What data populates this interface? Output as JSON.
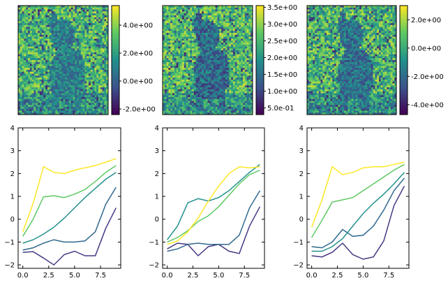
{
  "colormap": {
    "name": "viridis",
    "stops": [
      "#440154",
      "#3b528b",
      "#21918c",
      "#5ec962",
      "#fde725"
    ]
  },
  "chart_data": [
    {
      "type": "heatmap",
      "note": "noisy image of a dog",
      "vmin": -2.4,
      "vmax": 5.4,
      "colorbar_ticks": [
        {
          "value": 4.0,
          "label": "4.0e+00"
        },
        {
          "value": 2.0,
          "label": "2.0e+00"
        },
        {
          "value": 0.0,
          "label": "0.0e+00"
        },
        {
          "value": -2.0,
          "label": "-2.0e+00"
        }
      ]
    },
    {
      "type": "heatmap",
      "note": "noisy image of a dog",
      "vmin": 0.3,
      "vmax": 3.55,
      "colorbar_ticks": [
        {
          "value": 3.5,
          "label": "3.5e+00"
        },
        {
          "value": 3.0,
          "label": "3.0e+00"
        },
        {
          "value": 2.5,
          "label": "2.5e+00"
        },
        {
          "value": 2.0,
          "label": "2.0e+00"
        },
        {
          "value": 1.5,
          "label": "1.5e+00"
        },
        {
          "value": 1.0,
          "label": "1.0e+00"
        },
        {
          "value": 0.5,
          "label": "5.0e-01"
        }
      ]
    },
    {
      "type": "heatmap",
      "note": "noisy image of a dog",
      "vmin": -4.7,
      "vmax": 3.0,
      "colorbar_ticks": [
        {
          "value": 2.0,
          "label": "2.0e+00"
        },
        {
          "value": 0.0,
          "label": "0.0e+00"
        },
        {
          "value": -2.0,
          "label": "-2.0e+00"
        },
        {
          "value": -4.0,
          "label": "-4.0e+00"
        }
      ]
    },
    {
      "type": "line",
      "x": [
        0,
        1,
        2,
        3,
        4,
        5,
        6,
        7,
        8,
        9
      ],
      "xlim": [
        -0.45,
        9.45
      ],
      "ylim": [
        -2.15,
        4.0
      ],
      "xticks": [
        {
          "value": 0,
          "label": "0.0"
        },
        {
          "value": 2.5,
          "label": "2.5"
        },
        {
          "value": 5,
          "label": "5.0"
        },
        {
          "value": 7.5,
          "label": "7.5"
        }
      ],
      "yticks": [
        {
          "value": -2,
          "label": "−2"
        },
        {
          "value": -1,
          "label": "−1"
        },
        {
          "value": 0,
          "label": "0"
        },
        {
          "value": 1,
          "label": "1"
        },
        {
          "value": 2,
          "label": "2"
        },
        {
          "value": 3,
          "label": "3"
        },
        {
          "value": 4,
          "label": "4"
        }
      ],
      "series": [
        {
          "color": "#443983",
          "values": [
            -1.45,
            -1.42,
            -1.7,
            -2.0,
            -1.55,
            -1.4,
            -1.6,
            -1.6,
            -0.4,
            0.5
          ]
        },
        {
          "color": "#31688e",
          "values": [
            -1.35,
            -1.25,
            -1.05,
            -0.9,
            -1.0,
            -1.0,
            -0.95,
            -0.55,
            0.65,
            1.4
          ]
        },
        {
          "color": "#21918c",
          "values": [
            -1.05,
            -0.9,
            -0.65,
            -0.35,
            0.05,
            0.5,
            0.95,
            1.35,
            1.75,
            2.05
          ]
        },
        {
          "color": "#5ec962",
          "values": [
            -0.75,
            0.0,
            0.98,
            1.03,
            0.95,
            1.1,
            1.3,
            1.65,
            2.05,
            2.35
          ]
        },
        {
          "color": "#fde725",
          "values": [
            -0.55,
            0.7,
            2.3,
            2.05,
            2.0,
            2.15,
            2.25,
            2.35,
            2.5,
            2.65
          ]
        }
      ]
    },
    {
      "type": "line",
      "x": [
        0,
        1,
        2,
        3,
        4,
        5,
        6,
        7,
        8,
        9
      ],
      "xlim": [
        -0.45,
        9.45
      ],
      "ylim": [
        -2.15,
        4.0
      ],
      "xticks": [
        {
          "value": 0,
          "label": "0.0"
        },
        {
          "value": 2.5,
          "label": "2.5"
        },
        {
          "value": 5,
          "label": "5.0"
        },
        {
          "value": 7.5,
          "label": "7.5"
        }
      ],
      "yticks": [
        {
          "value": -2,
          "label": "−2"
        },
        {
          "value": -1,
          "label": "−1"
        },
        {
          "value": 0,
          "label": "0"
        },
        {
          "value": 1,
          "label": "1"
        },
        {
          "value": 2,
          "label": "2"
        },
        {
          "value": 3,
          "label": "3"
        },
        {
          "value": 4,
          "label": "4"
        }
      ],
      "series": [
        {
          "color": "#443983",
          "values": [
            -1.3,
            -1.05,
            -1.1,
            -1.6,
            -1.2,
            -1.1,
            -1.4,
            -1.5,
            -0.3,
            0.55
          ]
        },
        {
          "color": "#31688e",
          "values": [
            -1.4,
            -1.3,
            -1.1,
            -1.05,
            -1.1,
            -1.1,
            -1.1,
            -0.7,
            0.5,
            1.25
          ]
        },
        {
          "color": "#21918c",
          "values": [
            -0.9,
            -0.3,
            0.72,
            0.9,
            0.8,
            0.95,
            1.25,
            1.65,
            2.05,
            2.4
          ]
        },
        {
          "color": "#5ec962",
          "values": [
            -1.0,
            -0.8,
            -0.5,
            -0.1,
            0.15,
            0.55,
            1.05,
            1.55,
            1.95,
            2.15
          ]
        },
        {
          "color": "#fde725",
          "values": [
            -1.1,
            -0.95,
            -0.55,
            0.05,
            0.8,
            1.45,
            2.0,
            2.3,
            2.25,
            2.3
          ]
        }
      ]
    },
    {
      "type": "line",
      "x": [
        0,
        1,
        2,
        3,
        4,
        5,
        6,
        7,
        8,
        9
      ],
      "xlim": [
        -0.45,
        9.45
      ],
      "ylim": [
        -2.15,
        4.0
      ],
      "xticks": [
        {
          "value": 0,
          "label": "0.0"
        },
        {
          "value": 2.5,
          "label": "2.5"
        },
        {
          "value": 5,
          "label": "5.0"
        },
        {
          "value": 7.5,
          "label": "7.5"
        }
      ],
      "yticks": [
        {
          "value": -2,
          "label": "−2"
        },
        {
          "value": -1,
          "label": "−1"
        },
        {
          "value": 0,
          "label": "0"
        },
        {
          "value": 1,
          "label": "1"
        },
        {
          "value": 2,
          "label": "2"
        },
        {
          "value": 3,
          "label": "3"
        },
        {
          "value": 4,
          "label": "4"
        }
      ],
      "series": [
        {
          "color": "#443983",
          "values": [
            -1.6,
            -1.65,
            -1.45,
            -1.05,
            -1.55,
            -1.75,
            -1.65,
            -0.95,
            0.6,
            1.45
          ]
        },
        {
          "color": "#31688e",
          "values": [
            -1.2,
            -1.25,
            -1.0,
            -0.45,
            -0.75,
            -0.7,
            -0.3,
            0.4,
            1.25,
            1.8
          ]
        },
        {
          "color": "#21918c",
          "values": [
            -1.4,
            -1.4,
            -1.2,
            -0.85,
            -0.3,
            0.25,
            0.7,
            1.1,
            1.55,
            2.05
          ]
        },
        {
          "color": "#5ec962",
          "values": [
            -0.8,
            -0.05,
            0.75,
            0.85,
            0.95,
            1.25,
            1.55,
            1.85,
            2.15,
            2.4
          ]
        },
        {
          "color": "#fde725",
          "values": [
            -0.35,
            0.85,
            2.3,
            1.95,
            2.05,
            2.25,
            2.3,
            2.3,
            2.4,
            2.5
          ]
        }
      ]
    }
  ]
}
